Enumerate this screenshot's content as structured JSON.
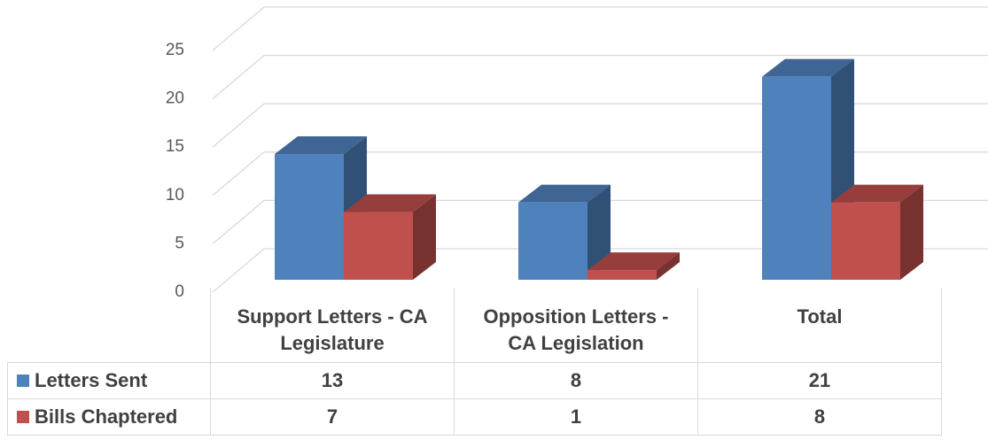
{
  "chart_data": {
    "type": "bar3d",
    "categories": [
      "Support Letters - CA Legislature",
      "Opposition Letters - CA Legislation",
      "Total"
    ],
    "series": [
      {
        "name": "Letters Sent",
        "color": "#4f81bd",
        "values": [
          13,
          8,
          21
        ]
      },
      {
        "name": "Bills Chaptered",
        "color": "#c0504d",
        "values": [
          7,
          1,
          8
        ]
      }
    ],
    "ylim": [
      0,
      25
    ],
    "yticks": [
      0,
      5,
      10,
      15,
      20,
      25
    ],
    "grid": true,
    "data_table": true
  }
}
